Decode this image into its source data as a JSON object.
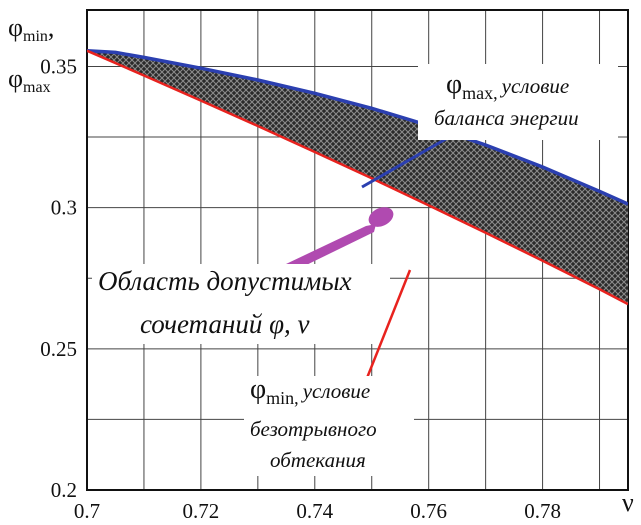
{
  "chart_data": {
    "type": "area",
    "xlabel": {
      "symbol": "ν"
    },
    "ylabel": {
      "symbol_min": "φ",
      "sub_min": "min",
      "comma": ",",
      "symbol_max": "φ",
      "sub_max": "max"
    },
    "xlim": [
      0.7,
      0.795
    ],
    "ylim": [
      0.2,
      0.37
    ],
    "xticks": [
      0.7,
      0.72,
      0.74,
      0.76,
      0.78
    ],
    "yticks": [
      0.2,
      0.25,
      0.3,
      0.35
    ],
    "xtick_labels": [
      "0.7",
      "0.72",
      "0.74",
      "0.76",
      "0.78"
    ],
    "xtick_last_label": "ν",
    "ytick_labels": [
      "0.2",
      "0.25",
      "0.3",
      "0.35"
    ],
    "grid": true,
    "series": [
      {
        "key": "phi_max",
        "color": "#2b3fb0",
        "x": [
          0.7,
          0.705,
          0.71,
          0.72,
          0.73,
          0.74,
          0.75,
          0.76,
          0.77,
          0.78,
          0.79,
          0.795
        ],
        "y": [
          0.3556,
          0.355,
          0.3532,
          0.3494,
          0.3452,
          0.3405,
          0.3352,
          0.3291,
          0.3222,
          0.3144,
          0.3058,
          0.3013
        ]
      },
      {
        "key": "phi_min",
        "color": "#e8221e",
        "x": [
          0.7,
          0.71,
          0.72,
          0.73,
          0.74,
          0.75,
          0.76,
          0.77,
          0.78,
          0.79,
          0.795
        ],
        "y": [
          0.3556,
          0.3468,
          0.3379,
          0.3289,
          0.3197,
          0.3104,
          0.3008,
          0.2911,
          0.2812,
          0.2711,
          0.2658
        ]
      }
    ],
    "annotations": {
      "phi_max": {
        "symbol": "φ",
        "sub": "max,",
        "line1": "условие",
        "line2": "баланса энергии"
      },
      "region": {
        "line1": "Область допустимых",
        "line2": "сочетаний φ, ν",
        "color": "#b04ab0"
      },
      "phi_min": {
        "symbol": "φ",
        "sub": "min,",
        "line1": "условие",
        "line2": "безотрывного",
        "line3": "обтекания"
      }
    }
  }
}
